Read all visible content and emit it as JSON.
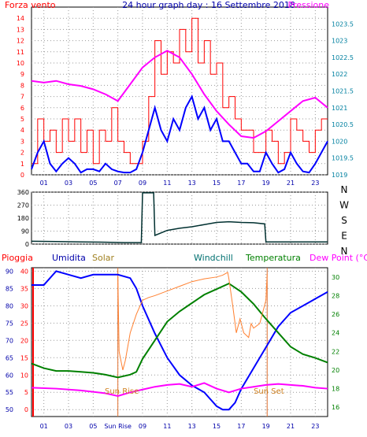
{
  "title": "24 hour graph day : 16 Settembre 2018",
  "chart_data": [
    {
      "type": "line",
      "title": "24 hour graph day : 16 Settembre 2018",
      "left_label": "Forza vento",
      "right_label": "Pressione",
      "x_ticks": [
        "01",
        "03",
        "05",
        "07",
        "09",
        "11",
        "13",
        "15",
        "17",
        "19",
        "21",
        "23"
      ],
      "y_ticks": [
        "0",
        "1",
        "2",
        "3",
        "4",
        "5",
        "6",
        "7",
        "8",
        "9",
        "10",
        "11",
        "12",
        "13",
        "14"
      ],
      "y2_ticks": [
        "1019",
        "1019.5",
        "1020",
        "1020.5",
        "1021",
        "1021.5",
        "1022",
        "1022.5",
        "1023",
        "1023.5"
      ],
      "ylim": [
        0,
        15
      ],
      "y2lim": [
        1019,
        1024
      ],
      "grid": true,
      "series": [
        {
          "name": "Forza vento",
          "color": "#ff0000",
          "x": [
            0.0,
            0.5,
            1.0,
            1.5,
            2.0,
            2.5,
            3.0,
            3.5,
            4.0,
            4.5,
            5.0,
            5.5,
            6.0,
            6.5,
            7.0,
            7.5,
            8.0,
            8.5,
            9.0,
            9.5,
            10.0,
            10.5,
            11.0,
            11.5,
            12.0,
            12.5,
            13.0,
            13.5,
            14.0,
            14.5,
            15.0,
            15.5,
            16.0,
            16.5,
            17.0,
            17.5,
            18.0,
            18.5,
            19.0,
            19.5,
            20.0,
            20.5,
            21.0,
            21.5,
            22.0,
            22.5,
            23.0,
            23.5,
            24.0
          ],
          "values": [
            1,
            5,
            3,
            4,
            2,
            5,
            3,
            5,
            2,
            4,
            1,
            4,
            3,
            6,
            3,
            2,
            1,
            1,
            3,
            7,
            12,
            9,
            11,
            10,
            13,
            11,
            14,
            10,
            12,
            9,
            10,
            6,
            7,
            5,
            4,
            4,
            2,
            2,
            4,
            3,
            1,
            2,
            5,
            4,
            3,
            2,
            4,
            5,
            5
          ]
        },
        {
          "name": "Raffica",
          "color": "#0000ff",
          "x": [
            0.0,
            0.5,
            1.0,
            1.5,
            2.0,
            2.5,
            3.0,
            3.5,
            4.0,
            4.5,
            5.0,
            5.5,
            6.0,
            6.5,
            7.0,
            7.5,
            8.0,
            8.5,
            9.0,
            9.5,
            10.0,
            10.5,
            11.0,
            11.5,
            12.0,
            12.5,
            13.0,
            13.5,
            14.0,
            14.5,
            15.0,
            15.5,
            16.0,
            16.5,
            17.0,
            17.5,
            18.0,
            18.5,
            19.0,
            19.5,
            20.0,
            20.5,
            21.0,
            21.5,
            22.0,
            22.5,
            23.0,
            23.5,
            24.0
          ],
          "values": [
            0.5,
            2,
            3,
            1,
            0.3,
            1,
            1.5,
            1,
            0.2,
            0.5,
            0.5,
            0.3,
            1,
            0.5,
            0.3,
            0.2,
            0.2,
            0.5,
            2,
            4,
            6,
            4,
            3,
            5,
            4,
            6,
            7,
            5,
            6,
            4,
            5,
            3,
            3,
            2,
            1,
            1,
            0.3,
            0.3,
            2,
            1,
            0.2,
            0.5,
            2,
            1,
            0.3,
            0.2,
            1,
            2,
            3
          ]
        },
        {
          "name": "Pressione",
          "color": "#ff00ff",
          "axis": "right",
          "x": [
            0,
            1,
            2,
            3,
            4,
            5,
            6,
            7,
            8,
            9,
            10,
            11,
            12,
            13,
            14,
            15,
            16,
            17,
            18,
            19,
            20,
            21,
            22,
            23,
            24
          ],
          "values": [
            1021.8,
            1021.75,
            1021.8,
            1021.7,
            1021.65,
            1021.55,
            1021.4,
            1021.2,
            1021.7,
            1022.2,
            1022.5,
            1022.7,
            1022.5,
            1022.0,
            1021.4,
            1020.9,
            1020.5,
            1020.15,
            1020.1,
            1020.3,
            1020.6,
            1020.9,
            1021.2,
            1021.3,
            1021.0
          ]
        }
      ]
    },
    {
      "type": "line",
      "ylabels_right": [
        "N",
        "W",
        "S",
        "E",
        "N"
      ],
      "y_ticks": [
        "0",
        "90",
        "180",
        "270",
        "360"
      ],
      "ylim": [
        0,
        360
      ],
      "series": [
        {
          "name": "Direzione vento",
          "color": "#003030",
          "x": [
            0,
            2,
            4,
            6,
            7.5,
            8.9,
            9.0,
            9.5,
            9.9,
            10.0,
            11,
            12,
            13,
            14,
            15,
            16,
            17,
            18,
            18.9,
            19.0,
            20,
            22,
            24
          ],
          "values": [
            20,
            18,
            15,
            13,
            10,
            10,
            355,
            355,
            355,
            60,
            95,
            110,
            120,
            135,
            150,
            155,
            150,
            148,
            140,
            15,
            15,
            15,
            15
          ]
        }
      ]
    },
    {
      "type": "line",
      "labels": {
        "rain": "Pioggia",
        "humidity": "Umidita",
        "solar": "Solar",
        "windchill": "Windchill",
        "temperature": "Temperatura",
        "dewpoint": "Dew Point (°C)"
      },
      "sun_rise_label": "Sun Rise",
      "sun_set_label": "Sun Set",
      "x_ticks": [
        "01",
        "03",
        "05",
        "Sun Rise",
        "09",
        "11",
        "13",
        "15",
        "17",
        "19",
        "21",
        "23"
      ],
      "rain_ticks": [
        "0",
        "5",
        "10",
        "15",
        "20",
        "25",
        "30",
        "35",
        "40"
      ],
      "humidity_ticks": [
        "50",
        "55",
        "60",
        "65",
        "70",
        "75",
        "80",
        "85",
        "90"
      ],
      "temp_ticks": [
        "16",
        "18",
        "20",
        "22",
        "24",
        "26",
        "28",
        "30"
      ],
      "temp_lim": [
        15,
        31
      ],
      "humidity_lim": [
        48,
        91
      ],
      "series": [
        {
          "name": "Umidita",
          "color": "#0000ff",
          "x": [
            0,
            1,
            2,
            3,
            4,
            5,
            6,
            7,
            8,
            8.5,
            9,
            10,
            11,
            12,
            13,
            14,
            15,
            15.5,
            16,
            16.5,
            17,
            18,
            19,
            20,
            21,
            22,
            23,
            24
          ],
          "values": [
            86,
            86,
            90,
            89,
            88,
            89,
            89,
            89,
            88,
            85,
            80,
            72,
            65,
            60,
            57,
            55,
            51,
            50,
            50,
            52,
            56,
            62,
            68,
            74,
            78,
            80,
            82,
            84
          ]
        },
        {
          "name": "Temperatura",
          "color": "#008000",
          "x": [
            0,
            1,
            2,
            3,
            4,
            5,
            6,
            7,
            8,
            8.5,
            9,
            10,
            11,
            12,
            13,
            14,
            15,
            16,
            17,
            18,
            19,
            20,
            21,
            22,
            23,
            24
          ],
          "values": [
            20.7,
            20.2,
            19.9,
            19.9,
            19.8,
            19.7,
            19.5,
            19.2,
            19.5,
            19.8,
            21.2,
            23.2,
            25.2,
            26.3,
            27.2,
            28.1,
            28.7,
            29.3,
            28.4,
            27.1,
            25.5,
            24.0,
            22.5,
            21.7,
            21.3,
            20.8
          ]
        },
        {
          "name": "Dew Point",
          "color": "#ff00ff",
          "x": [
            0,
            2,
            4,
            6,
            7,
            8,
            9,
            10,
            11,
            12,
            13,
            14,
            15,
            16,
            17,
            18,
            19,
            20,
            21,
            22,
            23,
            24
          ],
          "values": [
            18.1,
            18.0,
            17.8,
            17.5,
            17.2,
            17.6,
            17.9,
            18.2,
            18.4,
            18.5,
            18.2,
            18.6,
            18.0,
            17.6,
            18.0,
            18.2,
            18.4,
            18.5,
            18.4,
            18.3,
            18.1,
            18.0
          ]
        },
        {
          "name": "Solar",
          "color": "#ff8030",
          "x": [
            7.0,
            7.1,
            7.4,
            7.6,
            8.0,
            8.5,
            9.0,
            9.5,
            10,
            11,
            12,
            13,
            14,
            15,
            15.5,
            15.9,
            16.0,
            16.3,
            16.6,
            16.9,
            17.2,
            17.6,
            17.8,
            18.0,
            18.5,
            19.0,
            19.1
          ],
          "values": [
            30,
            22,
            20,
            21,
            24,
            26,
            27.5,
            27.8,
            28,
            28.5,
            29,
            29.5,
            29.8,
            30,
            30.2,
            30.5,
            29.8,
            27,
            24,
            25.5,
            24,
            23.5,
            25,
            24.5,
            25,
            27.5,
            30.3
          ]
        },
        {
          "name": "Pioggia",
          "color": "#ff0000",
          "values": [
            0
          ]
        }
      ]
    }
  ]
}
